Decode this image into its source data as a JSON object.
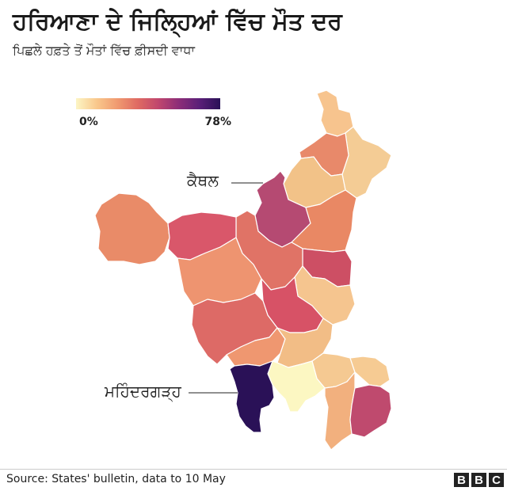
{
  "header": {
    "title": "ਹਰਿਆਣਾ ਦੇ ਜਿਲ੍ਹਿਆਂ ਵਿੱਚ ਮੌਤ ਦਰ",
    "subtitle": "ਪਿਛਲੇ ਹਫ਼ਤੇ ਤੋਂ ਮੌਤਾਂ ਵਿੱਚ ਫ਼ੀਸਦੀ ਵਾਧਾ"
  },
  "legend": {
    "min_label": "0%",
    "max_label": "78%",
    "min_value": 0,
    "max_value": 78,
    "colors": [
      "#fcf5c4",
      "#f9c88c",
      "#f09a70",
      "#df6a62",
      "#c0466e",
      "#8c2d78",
      "#5a1f78",
      "#2a1157"
    ]
  },
  "callouts": {
    "kaithal": "ਕੈਥਲ",
    "mahendragarh": "ਮਹਿੰਦਰਗੜ੍ਹ"
  },
  "footer": {
    "source": "Source: States' bulletin, data to 10 May",
    "logo_letters": [
      "B",
      "B",
      "C"
    ]
  },
  "colors": {
    "darkest": "#2a1157",
    "kaithal": "#b54a72",
    "lightest": "#fcf7c2",
    "border": "#ffffff"
  }
}
